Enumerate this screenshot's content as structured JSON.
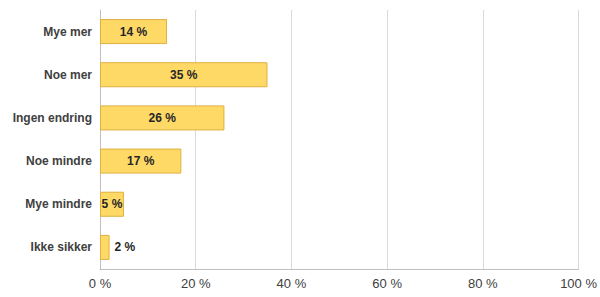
{
  "chart_data": {
    "type": "bar",
    "orientation": "horizontal",
    "categories": [
      "Mye mer",
      "Noe mer",
      "Ingen endring",
      "Noe mindre",
      "Mye mindre",
      "Ikke sikker"
    ],
    "values": [
      14,
      35,
      26,
      17,
      5,
      2
    ],
    "value_labels": [
      "14 %",
      "35 %",
      "26 %",
      "17 %",
      "5 %",
      "2 %"
    ],
    "data_labels": true,
    "color": "#ffd966",
    "xlim": [
      0,
      100
    ],
    "xticks": [
      {
        "value": 0,
        "label": "0 %"
      },
      {
        "value": 20,
        "label": "20 %"
      },
      {
        "value": 40,
        "label": "40 %"
      },
      {
        "value": 60,
        "label": "60 %"
      },
      {
        "value": 80,
        "label": "80 %"
      },
      {
        "value": 100,
        "label": "100 %"
      }
    ],
    "grid": true
  }
}
